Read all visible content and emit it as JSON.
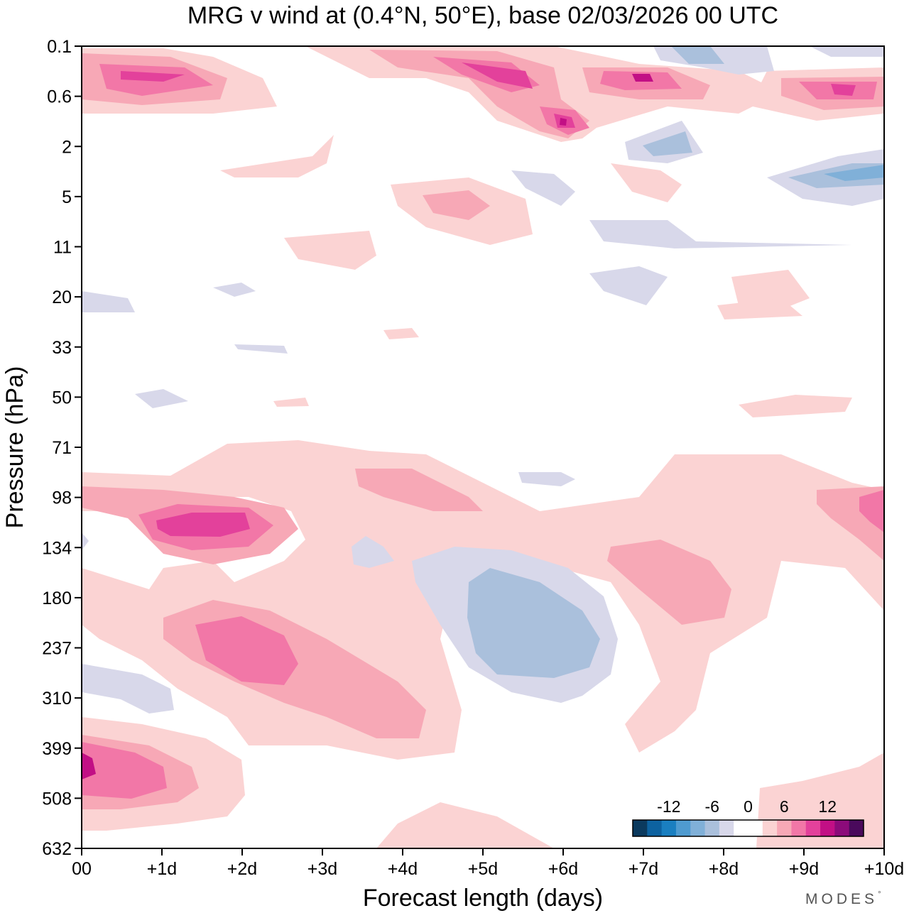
{
  "chart_data": {
    "type": "heatmap",
    "subtype": "filled-contour",
    "title": "MRG v wind at (0.4°N, 50°E),  base 02/03/2026  00 UTC",
    "xlabel": "Forecast length (days)",
    "ylabel": "Pressure (hPa)",
    "x_ticks": [
      "00",
      "+1d",
      "+2d",
      "+3d",
      "+4d",
      "+5d",
      "+6d",
      "+7d",
      "+8d",
      "+9d",
      "+10d"
    ],
    "y_ticks": [
      "0.1",
      "0.6",
      "2",
      "5",
      "11",
      "20",
      "33",
      "50",
      "71",
      "98",
      "134",
      "180",
      "237",
      "310",
      "399",
      "508",
      "632"
    ],
    "xlim_days": [
      0,
      10
    ],
    "y_levels_hPa": [
      0.1,
      0.6,
      2,
      5,
      11,
      20,
      33,
      50,
      71,
      98,
      134,
      180,
      237,
      310,
      399,
      508,
      632
    ],
    "colorbar": {
      "tick_labels": [
        "-12",
        "-6",
        "0",
        "6",
        "12"
      ],
      "colors": [
        "#0b3a5e",
        "#0d62a0",
        "#1a7fc0",
        "#4f9bd0",
        "#80b0d8",
        "#aac0dc",
        "#d8d8ea",
        "#ffffff",
        "#ffffff",
        "#fbd3d3",
        "#f7a8b6",
        "#f277a7",
        "#e3419b",
        "#c20f85",
        "#8c0b7a",
        "#4a0a5c"
      ]
    },
    "features": [
      {
        "region": "upper stratosphere 0.1-1 hPa",
        "days": "0-3",
        "sign": "positive",
        "peak": 8
      },
      {
        "region": "upper stratosphere 0.1-1 hPa",
        "days": "4-6",
        "sign": "positive",
        "peak": 12
      },
      {
        "region": "upper stratosphere 0.1-1 hPa",
        "days": "6.5-8",
        "sign": "positive",
        "peak": 10
      },
      {
        "region": "upper stratosphere 0.1-1 hPa",
        "days": "8.5-10",
        "sign": "positive",
        "peak": 10
      },
      {
        "region": "2-5 hPa",
        "days": "8-10",
        "sign": "negative",
        "peak": -6
      },
      {
        "region": "98-134 hPa",
        "days": "0.5-2.5",
        "sign": "positive",
        "peak": 10
      },
      {
        "region": "180-310 hPa",
        "days": "1-4.5",
        "sign": "positive",
        "peak": 8
      },
      {
        "region": "134-310 hPa",
        "days": "4-7",
        "sign": "negative",
        "peak": -6
      },
      {
        "region": "134-237 hPa",
        "days": "6.5-8",
        "sign": "positive",
        "peak": 4
      },
      {
        "region": "98-134 hPa",
        "days": "9-10",
        "sign": "positive",
        "peak": 6
      },
      {
        "region": "399-508 hPa",
        "days": "0-2",
        "sign": "positive",
        "peak": 10
      }
    ]
  },
  "brand": {
    "text": "MODES",
    "mark": "°"
  }
}
